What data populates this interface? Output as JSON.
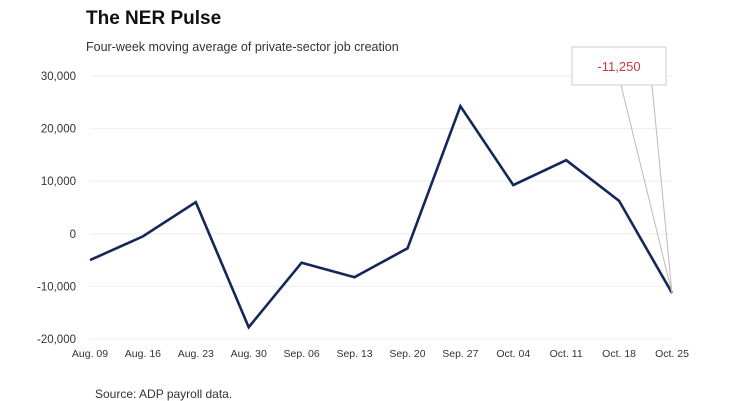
{
  "chart_data": {
    "type": "line",
    "title": "The NER Pulse",
    "subtitle": "Four-week moving average of private-sector job creation",
    "source": "Source: ADP payroll data.",
    "categories": [
      "Aug. 09",
      "Aug. 16",
      "Aug. 23",
      "Aug. 30",
      "Sep. 06",
      "Sep. 13",
      "Sep. 20",
      "Sep. 27",
      "Oct. 04",
      "Oct. 11",
      "Oct. 18",
      "Oct. 25"
    ],
    "series": [
      {
        "values": [
          -5000,
          -500,
          6000,
          -17750,
          -5500,
          -8250,
          -2750,
          24250,
          9250,
          14000,
          6250,
          -11250
        ]
      }
    ],
    "yticks": [
      30000,
      20000,
      10000,
      0,
      -10000,
      -20000
    ],
    "ytick_labels": [
      "30,000",
      "20,000",
      "10,000",
      "0",
      "-10,000",
      "-20,000"
    ],
    "ylim": [
      -20000,
      30000
    ],
    "grid": true,
    "callout": {
      "label": "-11,250",
      "category": "Oct. 25"
    },
    "colors": {
      "line": "#14275a",
      "callout_text": "#c9393b",
      "grid": "#eeeeee"
    }
  }
}
